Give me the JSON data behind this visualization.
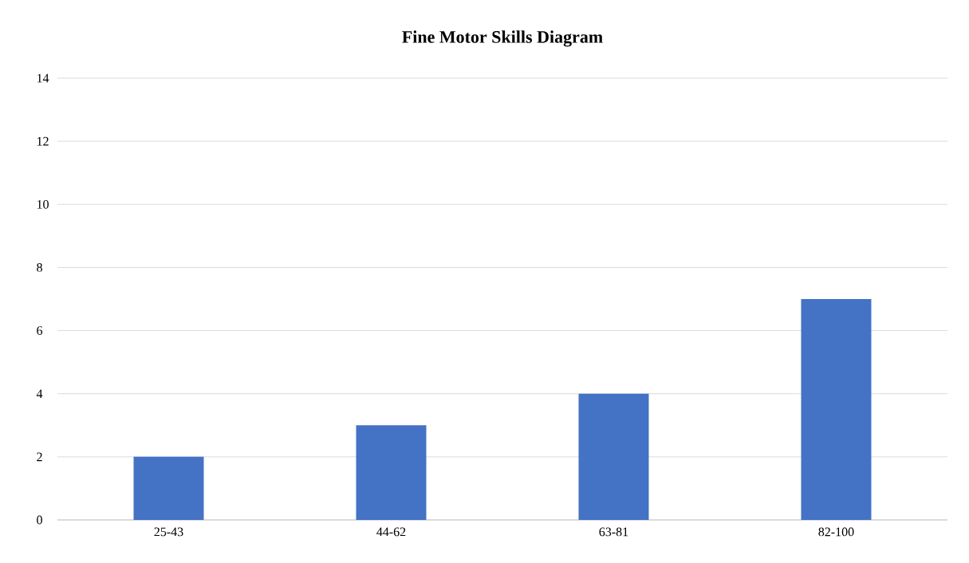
{
  "chart_data": {
    "type": "bar",
    "title": "Fine Motor Skills Diagram",
    "categories": [
      "25-43",
      "44-62",
      "63-81",
      "82-100"
    ],
    "values": [
      2,
      3,
      4,
      7
    ],
    "color": "#4472c4",
    "ylim": [
      0,
      14
    ],
    "yticks": [
      0,
      2,
      4,
      6,
      8,
      10,
      12,
      14
    ],
    "grid": "y"
  }
}
